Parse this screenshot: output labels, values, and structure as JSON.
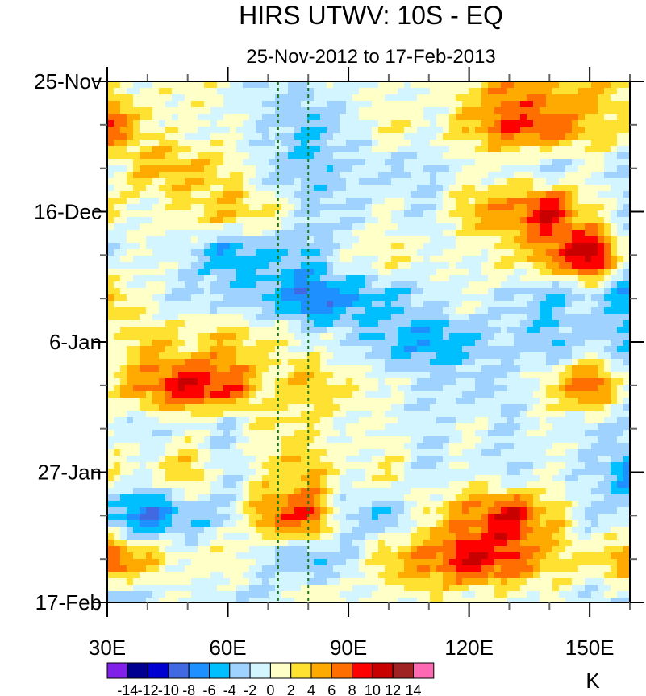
{
  "chart_data": {
    "type": "heatmap",
    "title": "HIRS UTWV: 10S - EQ",
    "subtitle": "25-Nov-2012 to 17-Feb-2013",
    "units": "K",
    "xlabel": "",
    "ylabel": "",
    "xlim": [
      30,
      160
    ],
    "ylim_days": [
      0,
      84
    ],
    "x_ticks": [
      {
        "value": 30,
        "label": "30E"
      },
      {
        "value": 60,
        "label": "60E"
      },
      {
        "value": 90,
        "label": "90E"
      },
      {
        "value": 120,
        "label": "120E"
      },
      {
        "value": 150,
        "label": "150E"
      }
    ],
    "y_ticks": [
      {
        "day": 0,
        "label": "25-Nov"
      },
      {
        "day": 21,
        "label": "16-Dec"
      },
      {
        "day": 42,
        "label": "6-Jan"
      },
      {
        "day": 63,
        "label": "27-Jan"
      },
      {
        "day": 84,
        "label": "17-Feb"
      }
    ],
    "reference_lines_lon": [
      72.5,
      80
    ],
    "lons": [
      30,
      40,
      50,
      60,
      70,
      80,
      90,
      100,
      110,
      120,
      130,
      140,
      150,
      160
    ],
    "days": [
      0,
      7,
      14,
      21,
      28,
      35,
      42,
      49,
      56,
      63,
      70,
      77,
      84
    ],
    "values": [
      [
        2,
        0,
        2,
        0,
        -2,
        -2,
        0,
        0,
        0,
        2,
        6,
        4,
        4,
        2
      ],
      [
        8,
        2,
        0,
        0,
        -2,
        -4,
        -2,
        2,
        0,
        4,
        8,
        8,
        4,
        2
      ],
      [
        0,
        4,
        4,
        2,
        -2,
        -4,
        -2,
        -2,
        -2,
        0,
        0,
        -2,
        0,
        -2
      ],
      [
        2,
        0,
        2,
        4,
        2,
        -2,
        -2,
        0,
        -2,
        4,
        6,
        10,
        2,
        -2
      ],
      [
        -2,
        0,
        -2,
        -6,
        -4,
        -4,
        0,
        2,
        0,
        0,
        2,
        6,
        12,
        0
      ],
      [
        4,
        0,
        -2,
        -2,
        -4,
        -8,
        -6,
        -4,
        -2,
        0,
        -2,
        -4,
        -2,
        -6
      ],
      [
        0,
        4,
        2,
        4,
        2,
        0,
        -2,
        -4,
        -6,
        -4,
        -2,
        -4,
        -2,
        -4
      ],
      [
        2,
        6,
        10,
        8,
        2,
        4,
        2,
        0,
        -2,
        -2,
        -2,
        2,
        8,
        0
      ],
      [
        0,
        -2,
        0,
        -2,
        2,
        2,
        0,
        0,
        -2,
        0,
        -2,
        0,
        -2,
        -2
      ],
      [
        2,
        0,
        4,
        -2,
        2,
        4,
        0,
        2,
        -2,
        0,
        -2,
        0,
        -2,
        -6
      ],
      [
        -4,
        -8,
        -4,
        -2,
        6,
        8,
        -2,
        -4,
        2,
        6,
        10,
        4,
        -2,
        -2
      ],
      [
        8,
        4,
        0,
        2,
        -2,
        -4,
        -2,
        4,
        6,
        10,
        8,
        4,
        2,
        6
      ],
      [
        -4,
        -2,
        0,
        -2,
        -2,
        2,
        0,
        0,
        2,
        0,
        0,
        0,
        -2,
        -2
      ]
    ],
    "colorbar": {
      "labels": [
        "-14",
        "-12",
        "-10",
        "-8",
        "-6",
        "-4",
        "-2",
        "0",
        "2",
        "4",
        "6",
        "8",
        "10",
        "12",
        "14"
      ],
      "levels": [
        -14,
        -12,
        -10,
        -8,
        -6,
        -4,
        -2,
        0,
        2,
        4,
        6,
        8,
        10,
        12,
        14
      ],
      "colors": [
        "#8020e8",
        "#000090",
        "#0000d0",
        "#4169e1",
        "#1e90ff",
        "#00bfff",
        "#a0d2ff",
        "#d2f5ff",
        "#ffffc8",
        "#ffe132",
        "#ffaa00",
        "#ff6e00",
        "#ff0000",
        "#c80000",
        "#a02323",
        "#ff69b4"
      ]
    }
  }
}
